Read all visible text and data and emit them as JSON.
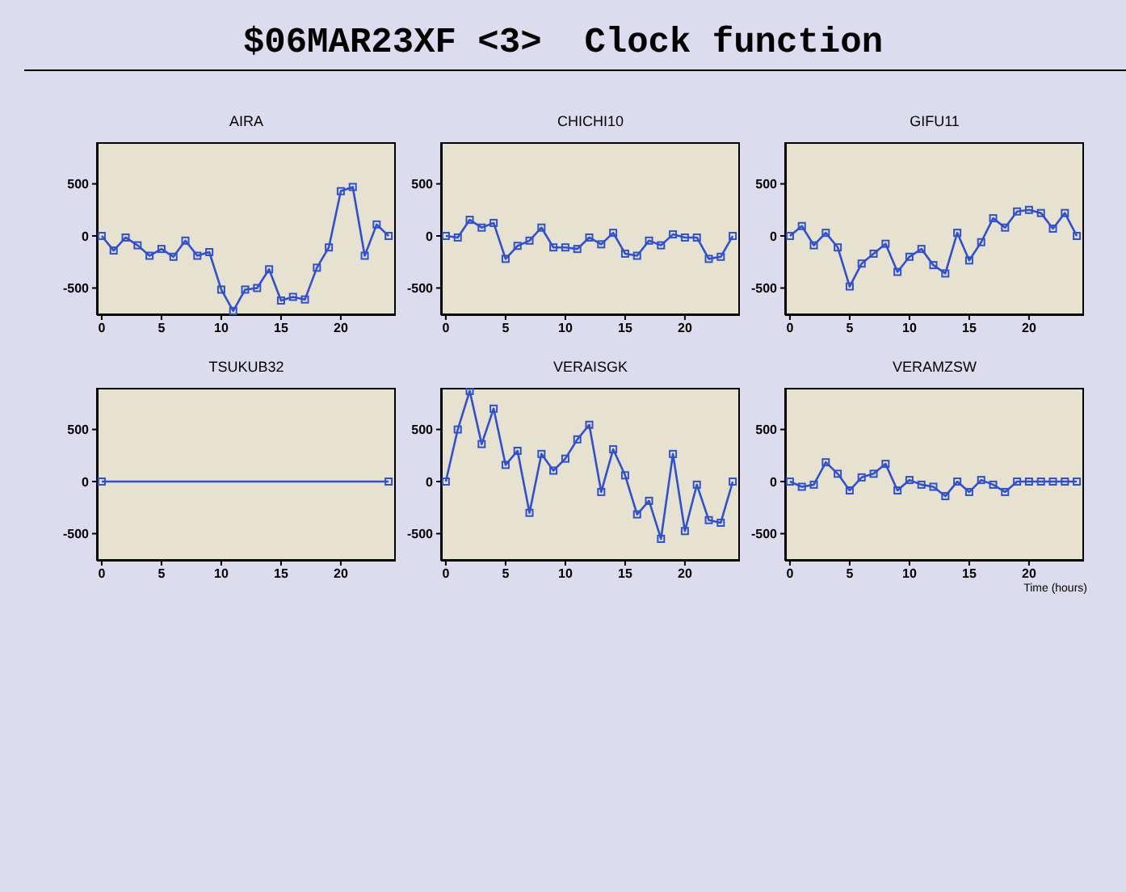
{
  "chart_data": [
    {
      "type": "line",
      "title": "AIRA",
      "annotations": [
        "$06MAR23XF <3>  Clock function"
      ],
      "x": [
        0,
        1,
        2,
        3,
        4,
        5,
        6,
        7,
        8,
        9,
        10,
        11,
        12,
        13,
        14,
        15,
        16,
        17,
        18,
        19,
        20,
        21,
        22,
        23,
        24
      ],
      "series": [
        {
          "color": "#3050d0",
          "values": [
            0,
            -140,
            -15,
            -90,
            -190,
            -125,
            -200,
            -45,
            -190,
            -155,
            -515,
            -720,
            -515,
            -500,
            -320,
            -620,
            -585,
            -610,
            -305,
            -110,
            430,
            470,
            -190,
            110,
            0
          ]
        }
      ],
      "xlim": [
        -0.4,
        24.6
      ],
      "xticks": [
        0,
        5,
        10,
        15,
        20
      ],
      "ylim": [
        -760,
        900
      ],
      "yticks": [
        -500,
        0,
        500
      ],
      "grid": false,
      "legend": false,
      "marker": "square",
      "line_style": "solid"
    },
    {
      "type": "line",
      "title": "CHICHI10",
      "x": [
        0,
        1,
        2,
        3,
        4,
        5,
        6,
        7,
        8,
        9,
        10,
        11,
        12,
        13,
        14,
        15,
        16,
        17,
        18,
        19,
        20,
        21,
        22,
        23,
        24
      ],
      "series": [
        {
          "color": "#3050d0",
          "values": [
            0,
            -15,
            155,
            80,
            125,
            -220,
            -95,
            -45,
            80,
            -110,
            -110,
            -125,
            -15,
            -80,
            30,
            -170,
            -190,
            -45,
            -90,
            15,
            -15,
            -15,
            -220,
            -200,
            0
          ]
        }
      ],
      "xlim": [
        -0.4,
        24.6
      ],
      "xticks": [
        0,
        5,
        10,
        15,
        20
      ],
      "ylim": [
        -760,
        900
      ],
      "yticks": [
        -500,
        0,
        500
      ],
      "grid": false,
      "legend": false,
      "marker": "square",
      "line_style": "solid"
    },
    {
      "type": "line",
      "title": "GIFU11",
      "x": [
        0,
        1,
        2,
        3,
        4,
        5,
        6,
        7,
        8,
        9,
        10,
        11,
        12,
        13,
        14,
        15,
        16,
        17,
        18,
        19,
        20,
        21,
        22,
        23,
        24
      ],
      "series": [
        {
          "color": "#3050d0",
          "values": [
            0,
            95,
            -90,
            30,
            -110,
            -485,
            -265,
            -170,
            -75,
            -345,
            -200,
            -125,
            -280,
            -360,
            30,
            -235,
            -60,
            170,
            80,
            235,
            250,
            220,
            70,
            220,
            0
          ]
        }
      ],
      "xlim": [
        -0.4,
        24.6
      ],
      "xticks": [
        0,
        5,
        10,
        15,
        20
      ],
      "ylim": [
        -760,
        900
      ],
      "yticks": [
        -500,
        0,
        500
      ],
      "grid": false,
      "legend": false,
      "marker": "square",
      "line_style": "solid"
    },
    {
      "type": "line",
      "title": "TSUKUB32",
      "x": [
        0,
        24
      ],
      "series": [
        {
          "color": "#3050d0",
          "values": [
            0,
            0
          ]
        }
      ],
      "xlim": [
        -0.4,
        24.6
      ],
      "xticks": [
        0,
        5,
        10,
        15,
        20
      ],
      "ylim": [
        -760,
        900
      ],
      "yticks": [
        -500,
        0,
        500
      ],
      "grid": false,
      "legend": false,
      "marker": "square",
      "line_style": "solid"
    },
    {
      "type": "line",
      "title": "VERAISGK",
      "x": [
        0,
        1,
        2,
        3,
        4,
        5,
        6,
        7,
        8,
        9,
        10,
        11,
        12,
        13,
        14,
        15,
        16,
        17,
        18,
        19,
        20,
        21,
        22,
        23,
        24
      ],
      "series": [
        {
          "color": "#3050d0",
          "values": [
            0,
            500,
            870,
            360,
            700,
            160,
            295,
            -300,
            265,
            105,
            220,
            405,
            545,
            -100,
            310,
            60,
            -315,
            -185,
            -550,
            265,
            -475,
            -30,
            -370,
            -395,
            0
          ]
        }
      ],
      "xlim": [
        -0.4,
        24.6
      ],
      "xticks": [
        0,
        5,
        10,
        15,
        20
      ],
      "ylim": [
        -760,
        900
      ],
      "yticks": [
        -500,
        0,
        500
      ],
      "grid": false,
      "legend": false,
      "marker": "square",
      "line_style": "solid"
    },
    {
      "type": "line",
      "title": "VERAMZSW",
      "xlabel": "Time (hours)",
      "x": [
        0,
        1,
        2,
        3,
        4,
        5,
        6,
        7,
        8,
        9,
        10,
        11,
        12,
        13,
        14,
        15,
        16,
        17,
        18,
        19,
        20,
        21,
        22,
        23,
        24
      ],
      "series": [
        {
          "color": "#3050d0",
          "values": [
            0,
            -50,
            -30,
            185,
            75,
            -85,
            40,
            75,
            170,
            -85,
            15,
            -30,
            -50,
            -140,
            0,
            -100,
            15,
            -30,
            -100,
            0,
            0,
            0,
            0,
            0,
            0
          ]
        }
      ],
      "xlim": [
        -0.4,
        24.6
      ],
      "xticks": [
        0,
        5,
        10,
        15,
        20
      ],
      "ylim": [
        -760,
        900
      ],
      "yticks": [
        -500,
        0,
        500
      ],
      "grid": false,
      "legend": false,
      "marker": "square",
      "line_style": "solid"
    }
  ]
}
